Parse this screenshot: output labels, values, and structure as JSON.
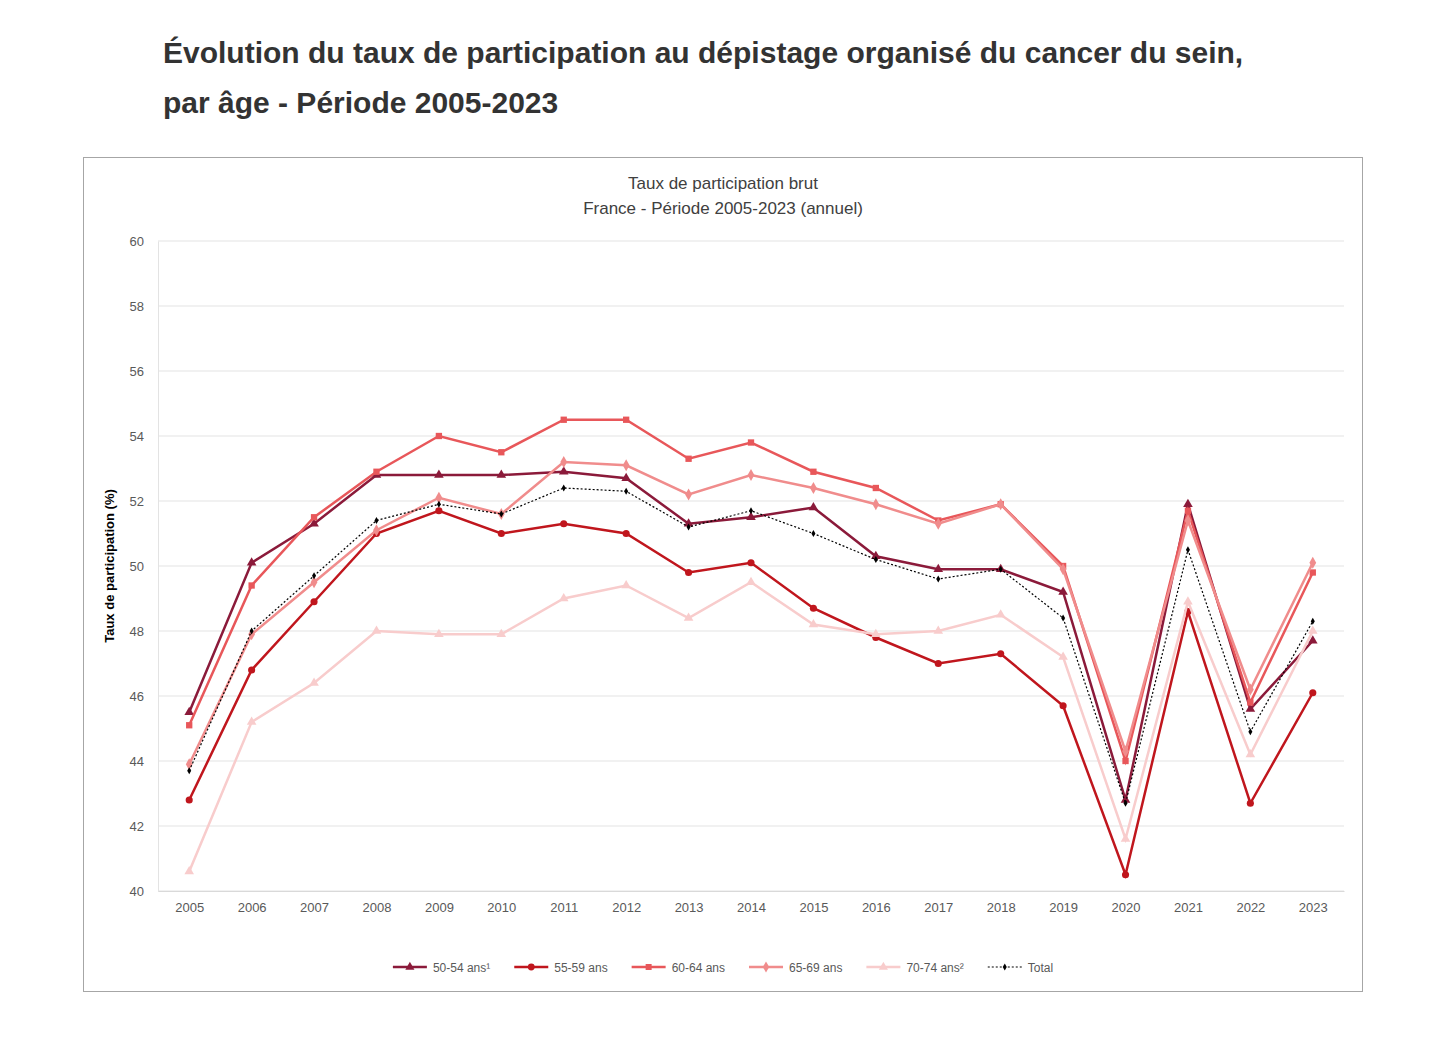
{
  "page_title": "Évolution du taux de participation au dépistage organisé du cancer du sein, par âge - Période 2005-2023",
  "chart_data": {
    "type": "line",
    "title": "Taux de participation brut",
    "subtitle": "France - Période 2005-2023 (annuel)",
    "y_label": "Taux de participation (%)",
    "categories": [
      "2005",
      "2006",
      "2007",
      "2008",
      "2009",
      "2010",
      "2011",
      "2012",
      "2013",
      "2014",
      "2015",
      "2016",
      "2017",
      "2018",
      "2019",
      "2020",
      "2021",
      "2022",
      "2023"
    ],
    "ylim": [
      40,
      60
    ],
    "yticks": [
      40,
      42,
      44,
      46,
      48,
      50,
      52,
      54,
      56,
      58,
      60
    ],
    "grid": true,
    "legend": "bottom",
    "series": [
      {
        "name": "50-54 ans¹",
        "color": "#8b1a3a",
        "marker": "triangle",
        "line_style": "solid",
        "values": [
          45.5,
          50.1,
          51.3,
          52.8,
          52.8,
          52.8,
          52.9,
          52.7,
          51.3,
          51.5,
          51.8,
          50.3,
          49.9,
          49.9,
          49.2,
          42.8,
          51.9,
          45.6,
          47.7
        ]
      },
      {
        "name": "55-59 ans",
        "color": "#c0161d",
        "marker": "circle",
        "line_style": "solid",
        "values": [
          42.8,
          46.8,
          48.9,
          51.0,
          51.7,
          51.0,
          51.3,
          51.0,
          49.8,
          50.1,
          48.7,
          47.8,
          47.0,
          47.3,
          45.7,
          40.5,
          48.6,
          42.7,
          46.1
        ]
      },
      {
        "name": "60-64 ans",
        "color": "#e8575a",
        "marker": "square",
        "line_style": "solid",
        "values": [
          45.1,
          49.4,
          51.5,
          52.9,
          54.0,
          53.5,
          54.5,
          54.5,
          53.3,
          53.8,
          52.9,
          52.4,
          51.4,
          51.9,
          50.0,
          44.0,
          51.7,
          45.8,
          49.8
        ]
      },
      {
        "name": "65-69 ans",
        "color": "#f08c8c",
        "marker": "diamond",
        "line_style": "solid",
        "values": [
          43.9,
          47.9,
          49.5,
          51.1,
          52.1,
          51.6,
          53.2,
          53.1,
          52.2,
          52.8,
          52.4,
          51.9,
          51.3,
          51.9,
          49.9,
          44.3,
          51.4,
          46.2,
          50.1
        ]
      },
      {
        "name": "70-74 ans²",
        "color": "#f8cccc",
        "marker": "triangle",
        "line_style": "solid",
        "values": [
          40.6,
          45.2,
          46.4,
          48.0,
          47.9,
          47.9,
          49.0,
          49.4,
          48.4,
          49.5,
          48.2,
          47.9,
          48.0,
          48.5,
          47.2,
          41.6,
          48.9,
          44.2,
          48.0
        ]
      },
      {
        "name": "Total",
        "color": "#000000",
        "marker": "diamond",
        "line_style": "dotted",
        "values": [
          43.7,
          48.0,
          49.7,
          51.4,
          51.9,
          51.6,
          52.4,
          52.3,
          51.2,
          51.7,
          51.0,
          50.2,
          49.6,
          49.9,
          48.4,
          42.7,
          50.5,
          44.9,
          48.3
        ]
      }
    ]
  }
}
